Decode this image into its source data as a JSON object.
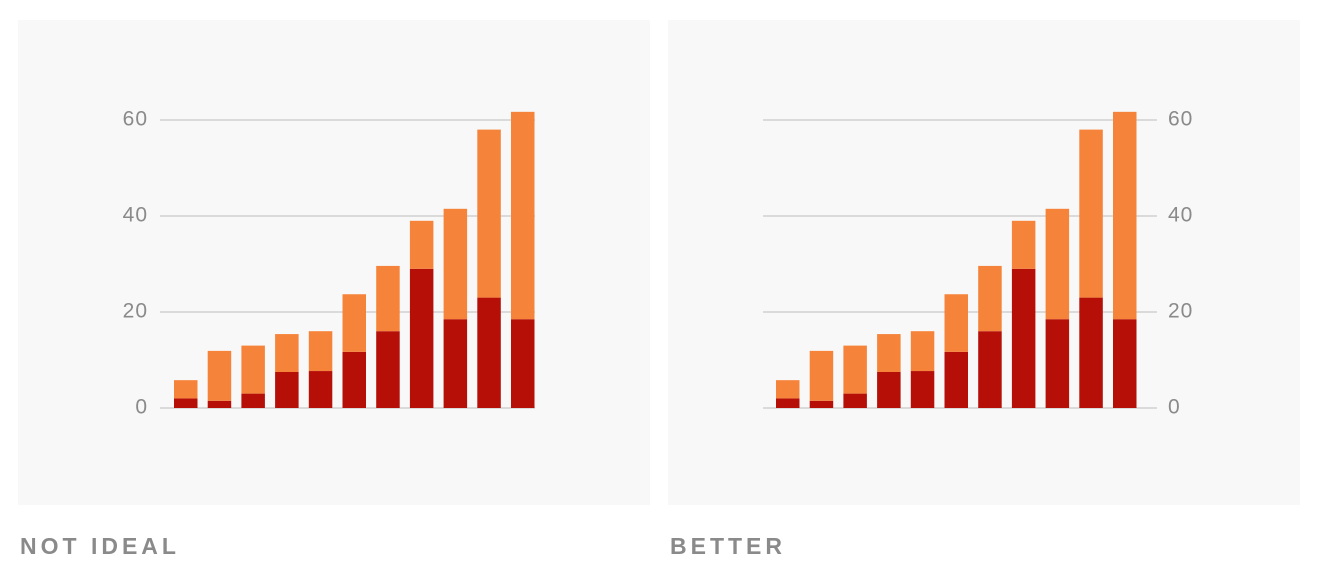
{
  "chart_data": [
    {
      "type": "bar",
      "stacked": true,
      "caption": "NOT IDEAL",
      "y_axis_position": "left",
      "categories": [
        null,
        null,
        null,
        null,
        null,
        null,
        null,
        null,
        null,
        null,
        null
      ],
      "series": [
        {
          "color": "#b50f08",
          "values": [
            2,
            1.5,
            3,
            7.5,
            7.7,
            11.7,
            16,
            29,
            18.5,
            23,
            18.5
          ]
        },
        {
          "color": "#f5843a",
          "values": [
            3.8,
            10.4,
            10,
            7.9,
            8.3,
            12,
            13.6,
            10,
            23,
            35,
            43.2
          ]
        }
      ],
      "ylim": [
        0,
        60
      ],
      "yticks": [
        0,
        20,
        40,
        60
      ],
      "grid": true
    },
    {
      "type": "bar",
      "stacked": true,
      "caption": "BETTER",
      "y_axis_position": "right",
      "categories": [
        null,
        null,
        null,
        null,
        null,
        null,
        null,
        null,
        null,
        null,
        null
      ],
      "series": [
        {
          "color": "#b50f08",
          "values": [
            2,
            1.5,
            3,
            7.5,
            7.7,
            11.7,
            16,
            29,
            18.5,
            23,
            18.5
          ]
        },
        {
          "color": "#f5843a",
          "values": [
            3.8,
            10.4,
            10,
            7.9,
            8.3,
            12,
            13.6,
            10,
            23,
            35,
            43.2
          ]
        }
      ],
      "ylim": [
        0,
        60
      ],
      "yticks": [
        0,
        20,
        40,
        60
      ],
      "grid": true
    }
  ]
}
